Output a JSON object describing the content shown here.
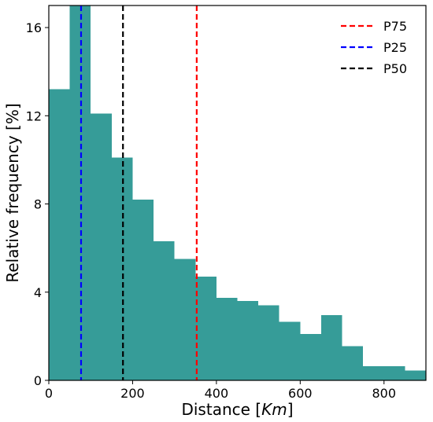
{
  "chart_data": {
    "type": "histogram",
    "xlabel": "Distance [",
    "xlabel_unit": "Km",
    "xlabel_suffix": "]",
    "ylabel": "Relative frequency [%]",
    "xlim": [
      0,
      900
    ],
    "ylim": [
      0,
      17
    ],
    "xticks": [
      0,
      200,
      400,
      600,
      800
    ],
    "yticks": [
      0,
      4,
      8,
      12,
      16
    ],
    "bar_color": "#369c98",
    "bins": [
      {
        "x0": 0,
        "x1": 50,
        "value": 13.2
      },
      {
        "x0": 50,
        "x1": 100,
        "value": 17.0
      },
      {
        "x0": 100,
        "x1": 150,
        "value": 12.1
      },
      {
        "x0": 150,
        "x1": 200,
        "value": 10.1
      },
      {
        "x0": 200,
        "x1": 250,
        "value": 8.2
      },
      {
        "x0": 250,
        "x1": 300,
        "value": 6.3
      },
      {
        "x0": 300,
        "x1": 350,
        "value": 5.5
      },
      {
        "x0": 350,
        "x1": 400,
        "value": 4.7
      },
      {
        "x0": 400,
        "x1": 450,
        "value": 3.75
      },
      {
        "x0": 450,
        "x1": 500,
        "value": 3.6
      },
      {
        "x0": 500,
        "x1": 550,
        "value": 3.4
      },
      {
        "x0": 550,
        "x1": 600,
        "value": 2.65
      },
      {
        "x0": 600,
        "x1": 650,
        "value": 2.1
      },
      {
        "x0": 650,
        "x1": 700,
        "value": 2.95
      },
      {
        "x0": 700,
        "x1": 750,
        "value": 1.55
      },
      {
        "x0": 750,
        "x1": 850,
        "value": 0.65
      },
      {
        "x0": 850,
        "x1": 900,
        "value": 0.45
      }
    ],
    "percentiles": [
      {
        "name": "P75",
        "x": 353,
        "color": "#ff0000"
      },
      {
        "name": "P25",
        "x": 77,
        "color": "#0000ff"
      },
      {
        "name": "P50",
        "x": 177,
        "color": "#000000"
      }
    ],
    "legend_position": "top-right"
  }
}
